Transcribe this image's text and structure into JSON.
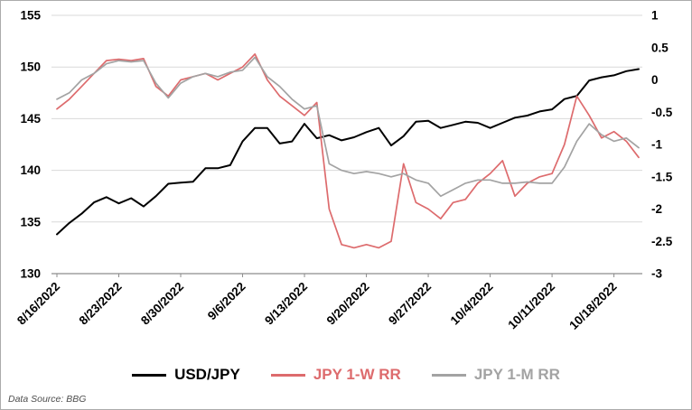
{
  "footer": {
    "data_source": "Data Source: BBG"
  },
  "chart_data": {
    "type": "line",
    "title": "",
    "legend_position": "bottom",
    "grid": "horizontal",
    "left_axis": {
      "min": 130,
      "max": 155,
      "ticks": [
        155,
        150,
        145,
        140,
        135,
        130
      ]
    },
    "right_axis": {
      "min": -3,
      "max": 1,
      "ticks": [
        "1",
        "0.5",
        "0",
        "-0.5",
        "-1",
        "-1.5",
        "-2",
        "-2.5",
        "-3"
      ]
    },
    "x_tick_indices": [
      0,
      5,
      10,
      15,
      20,
      25,
      30,
      35,
      40,
      45
    ],
    "x_tick_labels": [
      "8/16/2022",
      "8/23/2022",
      "8/30/2022",
      "9/6/2022",
      "9/13/2022",
      "9/20/2022",
      "9/27/2022",
      "10/4/2022",
      "10/11/2022",
      "10/18/2022"
    ],
    "dates": [
      "8/16/2022",
      "8/17/2022",
      "8/18/2022",
      "8/19/2022",
      "8/22/2022",
      "8/23/2022",
      "8/24/2022",
      "8/25/2022",
      "8/26/2022",
      "8/29/2022",
      "8/30/2022",
      "8/31/2022",
      "9/1/2022",
      "9/2/2022",
      "9/5/2022",
      "9/6/2022",
      "9/7/2022",
      "9/8/2022",
      "9/9/2022",
      "9/12/2022",
      "9/13/2022",
      "9/14/2022",
      "9/15/2022",
      "9/16/2022",
      "9/19/2022",
      "9/20/2022",
      "9/21/2022",
      "9/22/2022",
      "9/23/2022",
      "9/26/2022",
      "9/27/2022",
      "9/28/2022",
      "9/29/2022",
      "9/30/2022",
      "10/3/2022",
      "10/4/2022",
      "10/5/2022",
      "10/6/2022",
      "10/7/2022",
      "10/10/2022",
      "10/11/2022",
      "10/12/2022",
      "10/13/2022",
      "10/14/2022",
      "10/17/2022",
      "10/18/2022",
      "10/19/2022",
      "10/20/2022"
    ],
    "series": [
      {
        "name": "USD/JPY",
        "axis": "left",
        "color": "#000000",
        "width": 2,
        "values": [
          133.8,
          134.9,
          135.8,
          136.9,
          137.4,
          136.8,
          137.3,
          136.5,
          137.5,
          138.7,
          138.8,
          138.9,
          140.2,
          140.2,
          140.5,
          142.8,
          144.1,
          144.1,
          142.6,
          142.8,
          144.5,
          143.1,
          143.4,
          142.9,
          143.2,
          143.7,
          144.1,
          142.4,
          143.3,
          144.7,
          144.8,
          144.1,
          144.4,
          144.7,
          144.6,
          144.1,
          144.6,
          145.1,
          145.3,
          145.7,
          145.9,
          146.9,
          147.2,
          148.7,
          149.0,
          149.2,
          149.6,
          149.8
        ]
      },
      {
        "name": "JPY 1-W RR",
        "axis": "right",
        "color": "#dd6b6d",
        "width": 1.7,
        "values": [
          -0.45,
          -0.3,
          -0.1,
          0.1,
          0.3,
          0.32,
          0.3,
          0.33,
          -0.1,
          -0.25,
          0.0,
          0.05,
          0.1,
          0.0,
          0.1,
          0.2,
          0.4,
          0.0,
          -0.25,
          -0.4,
          -0.55,
          -0.35,
          -2.0,
          -2.55,
          -2.6,
          -2.55,
          -2.6,
          -2.5,
          -1.3,
          -1.9,
          -2.0,
          -2.15,
          -1.9,
          -1.85,
          -1.6,
          -1.45,
          -1.25,
          -1.8,
          -1.6,
          -1.5,
          -1.45,
          -1.0,
          -0.25,
          -0.55,
          -0.9,
          -0.8,
          -0.95,
          -1.2
        ]
      },
      {
        "name": "JPY 1-M RR",
        "axis": "right",
        "color": "#a3a3a3",
        "width": 1.7,
        "values": [
          -0.3,
          -0.2,
          0.0,
          0.1,
          0.25,
          0.3,
          0.28,
          0.3,
          -0.05,
          -0.28,
          -0.05,
          0.05,
          0.1,
          0.05,
          0.12,
          0.15,
          0.35,
          0.05,
          -0.1,
          -0.3,
          -0.45,
          -0.4,
          -1.3,
          -1.4,
          -1.45,
          -1.42,
          -1.45,
          -1.5,
          -1.45,
          -1.55,
          -1.6,
          -1.8,
          -1.7,
          -1.6,
          -1.55,
          -1.55,
          -1.6,
          -1.6,
          -1.58,
          -1.6,
          -1.6,
          -1.35,
          -0.95,
          -0.68,
          -0.85,
          -0.95,
          -0.9,
          -1.05
        ]
      }
    ],
    "colors": {
      "gridline": "#d9d9d9",
      "axis_line": "#8c8c8c"
    }
  }
}
